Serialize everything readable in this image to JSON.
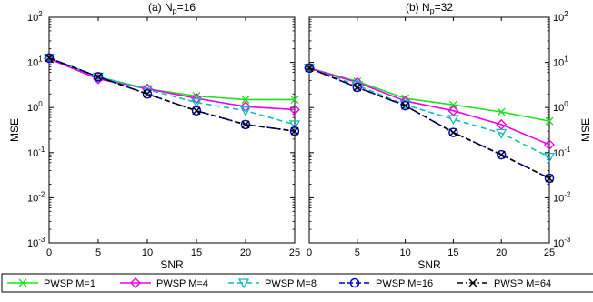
{
  "chart_data": [
    {
      "type": "line",
      "title": "(a) N",
      "title_sub": "p",
      "title_suffix": "=16",
      "xlabel": "SNR",
      "ylabel": "MSE",
      "xlim": [
        0,
        25
      ],
      "ylim": [
        0.001,
        100
      ],
      "yscale": "log",
      "grid": false,
      "x": [
        0,
        5,
        10,
        15,
        20,
        25
      ],
      "xticks": [
        "0",
        "5",
        "10",
        "15",
        "20",
        "25"
      ],
      "yticks": [
        {
          "base": "10",
          "exp": "-3"
        },
        {
          "base": "10",
          "exp": "-2"
        },
        {
          "base": "10",
          "exp": "-1"
        },
        {
          "base": "10",
          "exp": "0"
        },
        {
          "base": "10",
          "exp": "1"
        },
        {
          "base": "10",
          "exp": "2"
        }
      ],
      "series": [
        {
          "name": "PWSP M=1",
          "values": [
            12.5,
            4.8,
            2.6,
            1.8,
            1.5,
            1.5
          ]
        },
        {
          "name": "PWSP M=4",
          "values": [
            12.0,
            4.3,
            2.6,
            1.6,
            1.05,
            0.9
          ]
        },
        {
          "name": "PWSP M=8",
          "values": [
            12.5,
            4.8,
            2.5,
            1.3,
            0.85,
            0.42
          ]
        },
        {
          "name": "PWSP M=16",
          "values": [
            12.5,
            4.8,
            2.0,
            0.85,
            0.42,
            0.3
          ]
        },
        {
          "name": "PWSP M=64",
          "values": [
            12.5,
            4.8,
            2.0,
            0.85,
            0.42,
            0.3
          ]
        }
      ]
    },
    {
      "type": "line",
      "title": "(b) N",
      "title_sub": "p",
      "title_suffix": "=32",
      "xlabel": "SNR",
      "ylabel": "MSE",
      "xlim": [
        0,
        25
      ],
      "ylim": [
        0.001,
        100
      ],
      "yscale": "log",
      "grid": false,
      "x": [
        0,
        5,
        10,
        15,
        20,
        25
      ],
      "xticks": [
        "0",
        "5",
        "10",
        "15",
        "20",
        "25"
      ],
      "yticks": [
        {
          "base": "10",
          "exp": "-3"
        },
        {
          "base": "10",
          "exp": "-2"
        },
        {
          "base": "10",
          "exp": "-1"
        },
        {
          "base": "10",
          "exp": "0"
        },
        {
          "base": "10",
          "exp": "1"
        },
        {
          "base": "10",
          "exp": "2"
        }
      ],
      "series": [
        {
          "name": "PWSP M=1",
          "values": [
            7.5,
            3.8,
            1.6,
            1.15,
            0.8,
            0.5
          ]
        },
        {
          "name": "PWSP M=4",
          "values": [
            7.5,
            3.6,
            1.4,
            0.85,
            0.42,
            0.15
          ]
        },
        {
          "name": "PWSP M=8",
          "values": [
            7.5,
            3.1,
            1.15,
            0.55,
            0.27,
            0.08
          ]
        },
        {
          "name": "PWSP M=16",
          "values": [
            7.5,
            2.8,
            1.1,
            0.28,
            0.09,
            0.027
          ]
        },
        {
          "name": "PWSP M=64",
          "values": [
            7.5,
            2.8,
            1.1,
            0.28,
            0.09,
            0.027
          ]
        }
      ]
    }
  ],
  "series_style": [
    {
      "color": "#22e01f",
      "marker": "x",
      "dash": ""
    },
    {
      "color": "#ee00ee",
      "marker": "diamond",
      "dash": ""
    },
    {
      "color": "#11bcbc",
      "marker": "triangle-down",
      "dash": "6,4"
    },
    {
      "color": "#0000cc",
      "marker": "circle",
      "dash": "6,3"
    },
    {
      "color": "#000000",
      "marker": "x",
      "dash": "6,3,1.5,3"
    }
  ],
  "legend": {
    "placement": "bottom",
    "labels": [
      "PWSP M=1",
      "PWSP M=4",
      "PWSP M=8",
      "PWSP M=16",
      "PWSP M=64"
    ]
  }
}
